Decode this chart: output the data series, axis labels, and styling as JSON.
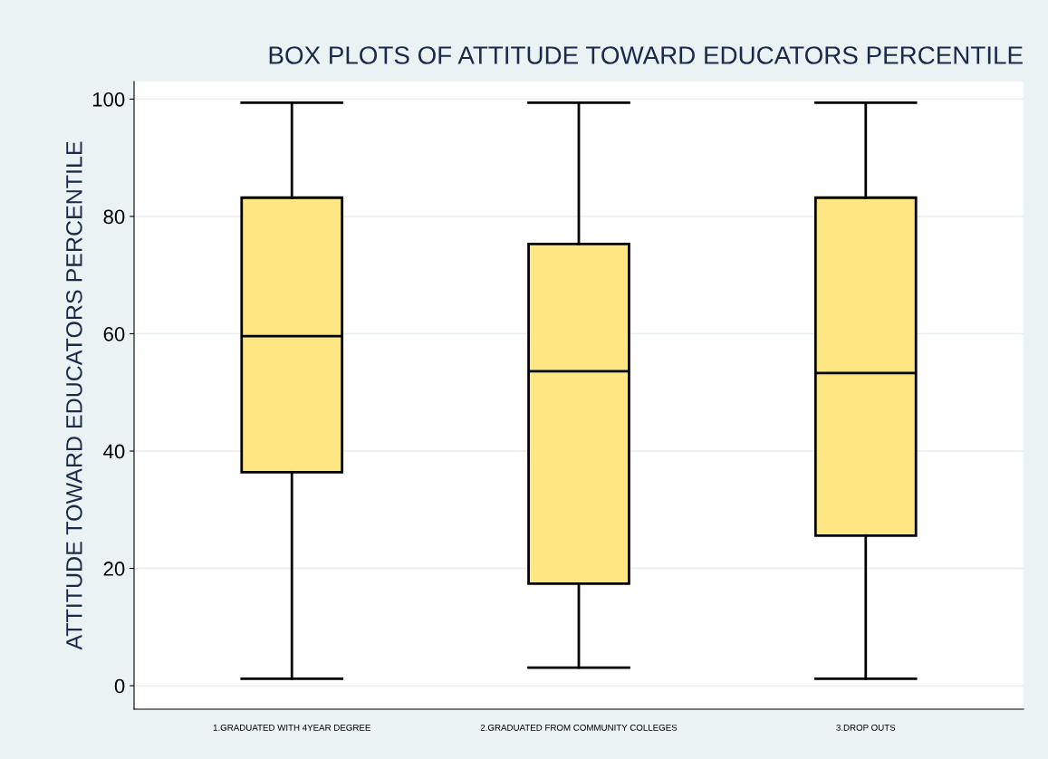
{
  "chart_data": {
    "type": "box",
    "title": "BOX PLOTS OF ATTITUDE TOWARD EDUCATORS PERCENTILE",
    "ylabel": "ATTITUDE TOWARD EDUCATORS PERCENTILE",
    "categories": [
      "1.GRADUATED WITH 4YEAR DEGREE",
      "2.GRADUATED FROM COMMUNITY COLLEGES",
      "3.DROP OUTS"
    ],
    "color": "#fee683",
    "boxes": [
      {
        "low": 1.2,
        "q1": 36.4,
        "median": 59.6,
        "q3": 83.2,
        "high": 99.4
      },
      {
        "low": 3.1,
        "q1": 17.4,
        "median": 53.6,
        "q3": 75.3,
        "high": 99.4
      },
      {
        "low": 1.2,
        "q1": 25.6,
        "median": 53.3,
        "q3": 83.2,
        "high": 99.4
      }
    ],
    "ylim": [
      -4,
      103
    ],
    "yticks": [
      0,
      20,
      40,
      60,
      80,
      100
    ],
    "grid": "y",
    "legend": false
  }
}
